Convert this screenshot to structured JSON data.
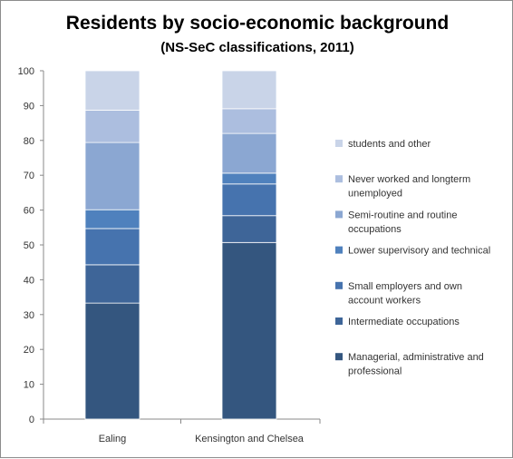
{
  "chart_data": {
    "type": "bar",
    "stacked": true,
    "title": "Residents by socio-economic background",
    "subtitle": "(NS-SeC classifications, 2011)",
    "categories": [
      "Ealing",
      "Kensington and Chelsea"
    ],
    "ylim": [
      0,
      100
    ],
    "yticks": [
      0,
      10,
      20,
      30,
      40,
      50,
      60,
      70,
      80,
      90,
      100
    ],
    "grid": false,
    "legend_position": "right",
    "series": [
      {
        "name": "Managerial, administrative and professional",
        "legend_lines": [
          "Managerial, administrative and",
          "professional"
        ],
        "color": "#34567f",
        "values": [
          33.3,
          50.7
        ]
      },
      {
        "name": "Intermediate occupations",
        "legend_lines": [
          "Intermediate occupations"
        ],
        "color": "#3e6598",
        "values": [
          11.0,
          7.7
        ]
      },
      {
        "name": "Small employers and own account workers",
        "legend_lines": [
          "Small employers and own",
          "account workers"
        ],
        "color": "#4673ae",
        "values": [
          10.4,
          9.1
        ]
      },
      {
        "name": "Lower supervisory and technical",
        "legend_lines": [
          "Lower supervisory and technical"
        ],
        "color": "#4f81bd",
        "values": [
          5.4,
          3.1
        ]
      },
      {
        "name": "Semi-routine and routine occupations",
        "legend_lines": [
          "Semi-routine and routine",
          "occupations"
        ],
        "color": "#8ba7d2",
        "values": [
          19.3,
          11.4
        ]
      },
      {
        "name": "Never worked and longterm unemployed",
        "legend_lines": [
          "Never worked and longterm",
          "unemployed"
        ],
        "color": "#acbedf",
        "values": [
          9.3,
          7.1
        ]
      },
      {
        "name": "students and other",
        "legend_lines": [
          "students and other"
        ],
        "color": "#c9d4e8",
        "values": [
          11.3,
          10.9
        ]
      }
    ]
  }
}
